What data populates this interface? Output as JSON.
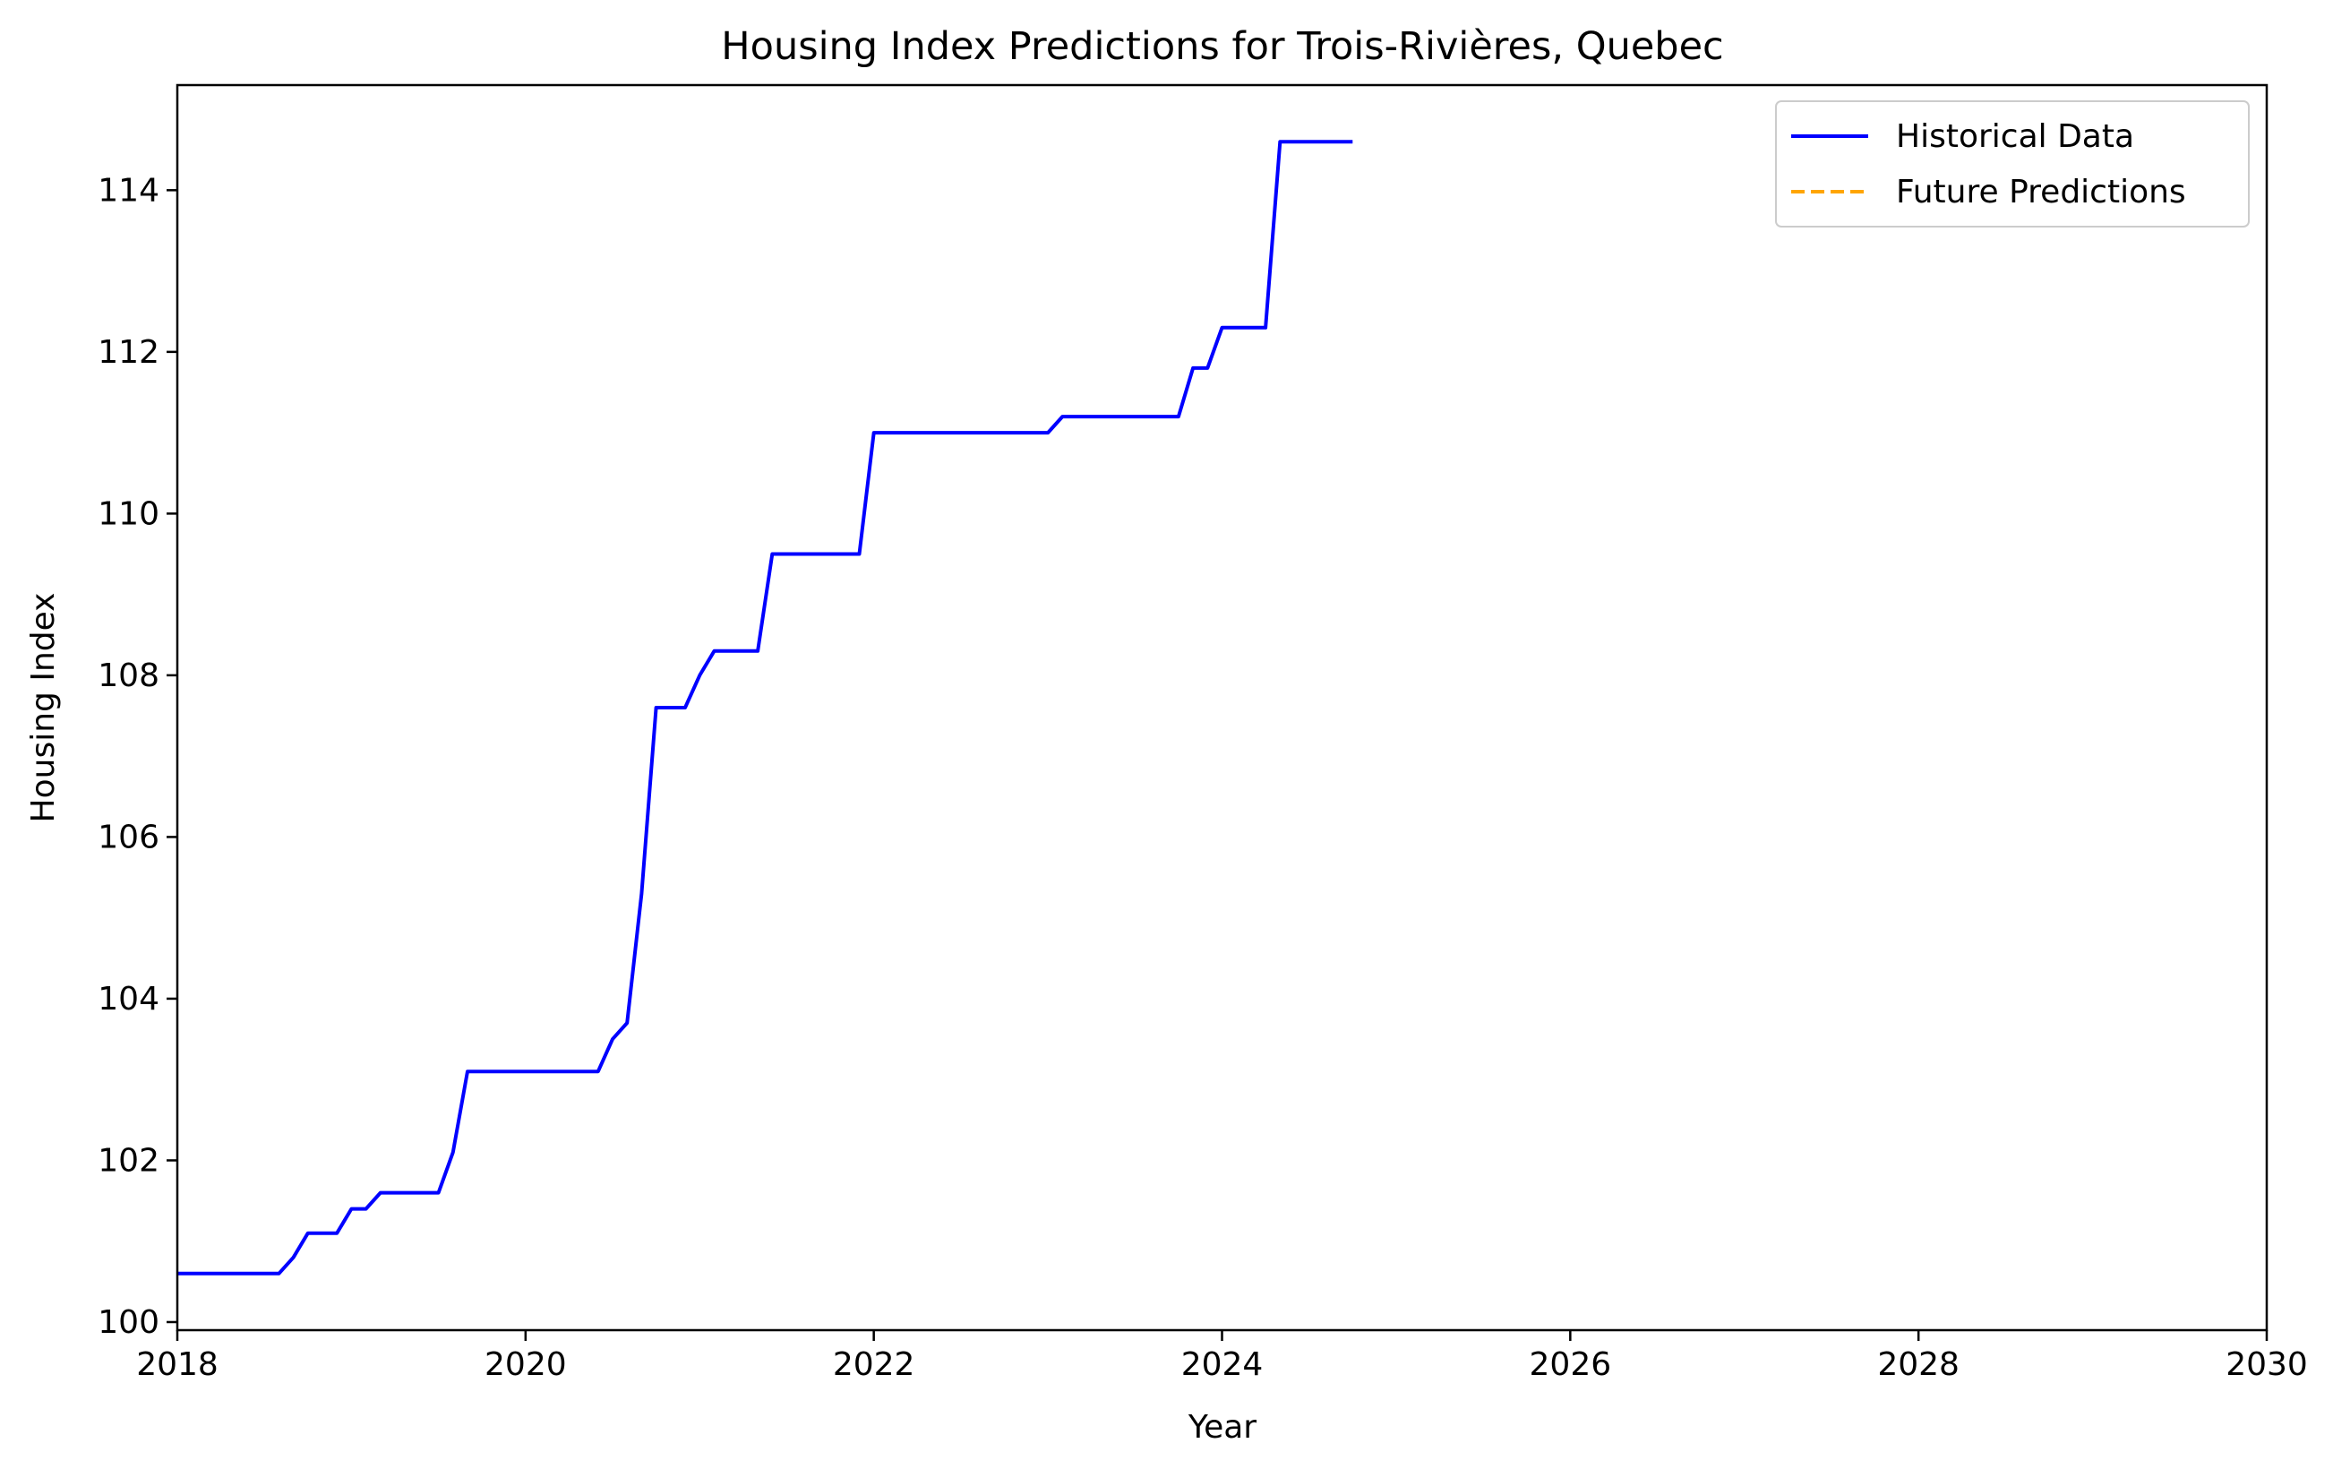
{
  "chart_data": {
    "type": "line",
    "title": "Housing Index Predictions for Trois-Rivières, Quebec",
    "xlabel": "Year",
    "ylabel": "Housing Index",
    "xlim": [
      2018,
      2030
    ],
    "ylim": [
      99.9,
      115.3
    ],
    "xticks": [
      2018,
      2020,
      2022,
      2024,
      2026,
      2028,
      2030
    ],
    "yticks": [
      100,
      102,
      104,
      106,
      108,
      110,
      112,
      114
    ],
    "grid": false,
    "legend": {
      "placement": "upper right",
      "entries": [
        {
          "label": "Historical Data",
          "color": "#0000ff",
          "style": "solid"
        },
        {
          "label": "Future Predictions",
          "color": "#ffa500",
          "style": "dashed"
        }
      ]
    },
    "series": [
      {
        "name": "Historical Data",
        "color": "#0000ff",
        "style": "solid",
        "x": [
          "2018-01",
          "2018-02",
          "2018-03",
          "2018-04",
          "2018-05",
          "2018-06",
          "2018-07",
          "2018-08",
          "2018-09",
          "2018-10",
          "2018-11",
          "2018-12",
          "2019-01",
          "2019-02",
          "2019-03",
          "2019-04",
          "2019-05",
          "2019-06",
          "2019-07",
          "2019-08",
          "2019-09",
          "2019-10",
          "2019-11",
          "2019-12",
          "2020-01",
          "2020-02",
          "2020-03",
          "2020-04",
          "2020-05",
          "2020-06",
          "2020-07",
          "2020-08",
          "2020-09",
          "2020-10",
          "2020-11",
          "2020-12",
          "2021-01",
          "2021-02",
          "2021-03",
          "2021-04",
          "2021-05",
          "2021-06",
          "2021-07",
          "2021-08",
          "2021-09",
          "2021-10",
          "2021-11",
          "2021-12",
          "2022-01",
          "2022-02",
          "2022-03",
          "2022-04",
          "2022-05",
          "2022-06",
          "2022-07",
          "2022-08",
          "2022-09",
          "2022-10",
          "2022-11",
          "2022-12",
          "2023-01",
          "2023-02",
          "2023-03",
          "2023-04",
          "2023-05",
          "2023-06",
          "2023-07",
          "2023-08",
          "2023-09",
          "2023-10",
          "2023-11",
          "2023-12",
          "2024-01",
          "2024-02",
          "2024-03",
          "2024-04",
          "2024-05",
          "2024-06",
          "2024-07",
          "2024-08",
          "2024-09",
          "2024-10"
        ],
        "values": [
          100.6,
          100.6,
          100.6,
          100.6,
          100.6,
          100.6,
          100.6,
          100.6,
          100.8,
          101.1,
          101.1,
          101.1,
          101.4,
          101.4,
          101.6,
          101.6,
          101.6,
          101.6,
          101.6,
          102.1,
          103.1,
          103.1,
          103.1,
          103.1,
          103.1,
          103.1,
          103.1,
          103.1,
          103.1,
          103.1,
          103.5,
          103.7,
          105.3,
          107.6,
          107.6,
          107.6,
          108.0,
          108.3,
          108.3,
          108.3,
          108.3,
          109.5,
          109.5,
          109.5,
          109.5,
          109.5,
          109.5,
          109.5,
          111.0,
          111.0,
          111.0,
          111.0,
          111.0,
          111.0,
          111.0,
          111.0,
          111.0,
          111.0,
          111.0,
          111.0,
          111.0,
          111.2,
          111.2,
          111.2,
          111.2,
          111.2,
          111.2,
          111.2,
          111.2,
          111.2,
          111.8,
          111.8,
          112.3,
          112.3,
          112.3,
          112.3,
          114.6,
          114.6,
          114.6,
          114.6,
          114.6,
          114.6
        ]
      },
      {
        "name": "Future Predictions",
        "color": "#ffa500",
        "style": "dashed",
        "x": [],
        "values": []
      }
    ]
  }
}
